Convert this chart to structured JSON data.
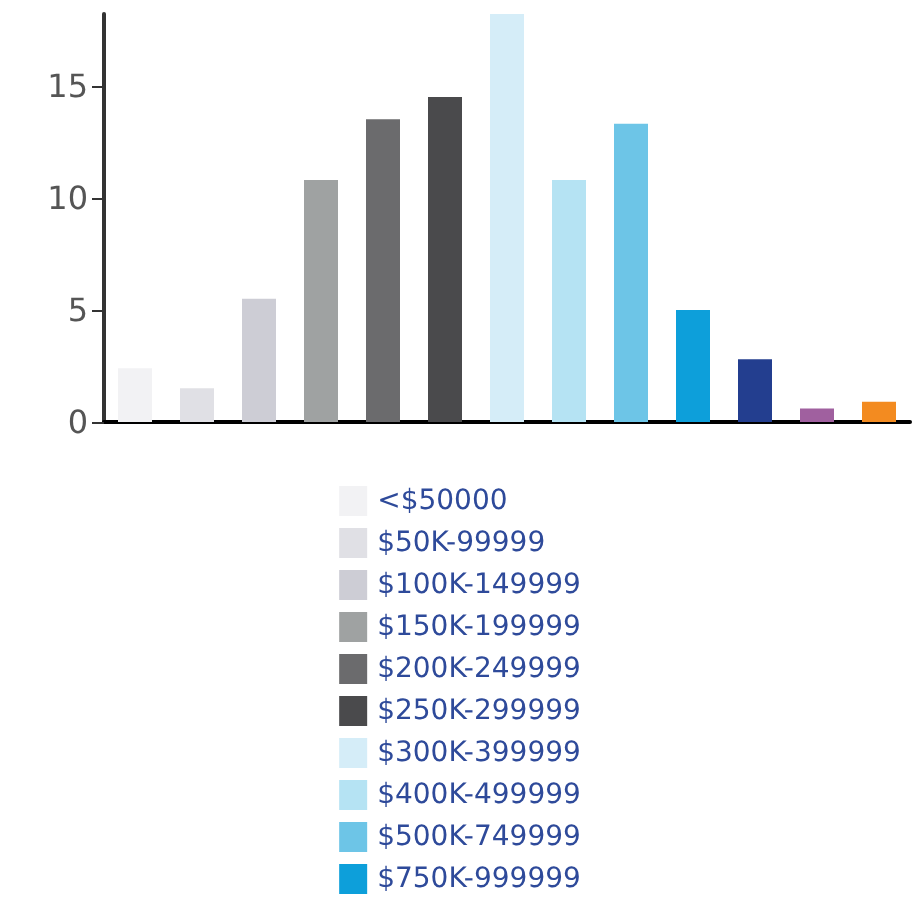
{
  "chart_data": {
    "type": "bar",
    "categories": [
      null,
      null,
      null,
      null,
      null,
      null,
      null,
      null,
      null,
      null,
      null,
      null,
      null
    ],
    "series": [
      {
        "name": "<$50000",
        "color": "#f2f2f4",
        "values": [
          2.4,
          null,
          null,
          null,
          null,
          null,
          null,
          null,
          null,
          null,
          null,
          null,
          null
        ]
      },
      {
        "name": "$50K-99999",
        "color": "#e0e0e5",
        "values": [
          null,
          1.5,
          null,
          null,
          null,
          null,
          null,
          null,
          null,
          null,
          null,
          null,
          null
        ]
      },
      {
        "name": "$100K-149999",
        "color": "#cdcdd5",
        "values": [
          null,
          null,
          5.5,
          null,
          null,
          null,
          null,
          null,
          null,
          null,
          null,
          null,
          null
        ]
      },
      {
        "name": "$150K-199999",
        "color": "#9fa2a2",
        "values": [
          null,
          null,
          null,
          10.8,
          null,
          null,
          null,
          null,
          null,
          null,
          null,
          null,
          null
        ]
      },
      {
        "name": "$200K-249999",
        "color": "#6b6b6d",
        "values": [
          null,
          null,
          null,
          null,
          13.5,
          null,
          null,
          null,
          null,
          null,
          null,
          null,
          null
        ]
      },
      {
        "name": "$250K-299999",
        "color": "#4a4a4c",
        "values": [
          null,
          null,
          null,
          null,
          null,
          14.5,
          null,
          null,
          null,
          null,
          null,
          null,
          null
        ]
      },
      {
        "name": "$300K-399999",
        "color": "#d5edf8",
        "values": [
          null,
          null,
          null,
          null,
          null,
          null,
          18.2,
          null,
          null,
          null,
          null,
          null,
          null
        ]
      },
      {
        "name": "$400K-499999",
        "color": "#b5e3f3",
        "values": [
          null,
          null,
          null,
          null,
          null,
          null,
          null,
          10.8,
          null,
          null,
          null,
          null,
          null
        ]
      },
      {
        "name": "$500K-749999",
        "color": "#6dc5e7",
        "values": [
          null,
          null,
          null,
          null,
          null,
          null,
          null,
          null,
          13.3,
          null,
          null,
          null,
          null
        ]
      },
      {
        "name": "$750K-999999",
        "color": "#0d9fda",
        "values": [
          null,
          null,
          null,
          null,
          null,
          null,
          null,
          null,
          null,
          5.0,
          null,
          null,
          null
        ]
      },
      {
        "color": "#233e8f",
        "values": [
          null,
          null,
          null,
          null,
          null,
          null,
          null,
          null,
          null,
          null,
          2.8,
          null,
          null
        ]
      },
      {
        "color": "#a0609f",
        "values": [
          null,
          null,
          null,
          null,
          null,
          null,
          null,
          null,
          null,
          null,
          null,
          0.6,
          null
        ]
      },
      {
        "color": "#f38b20",
        "values": [
          null,
          null,
          null,
          null,
          null,
          null,
          null,
          null,
          null,
          null,
          null,
          null,
          0.9
        ]
      }
    ],
    "ylim": [
      0,
      18.2
    ],
    "yticks": [
      0,
      5,
      10,
      15
    ],
    "grid": false,
    "legend": "bottom"
  }
}
